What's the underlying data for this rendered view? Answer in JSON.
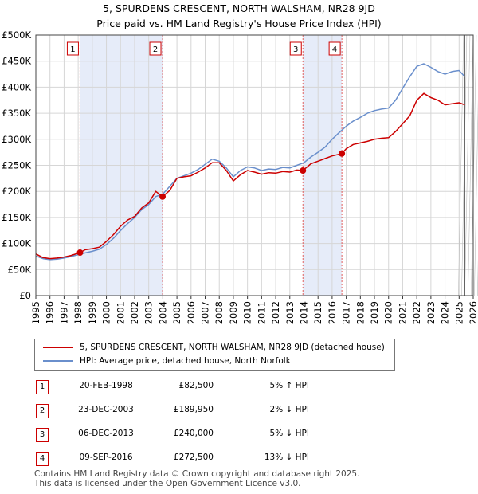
{
  "chart_data": {
    "type": "line",
    "title": "5, SPURDENS CRESCENT, NORTH WALSHAM, NR28 9JD",
    "subtitle": "Price paid vs. HM Land Registry's House Price Index (HPI)",
    "xlabel": "",
    "ylabel": "",
    "xlim": [
      1995,
      2026
    ],
    "ylim": [
      0,
      500000
    ],
    "x_ticks": [
      "1995",
      "1996",
      "1997",
      "1998",
      "1999",
      "2000",
      "2001",
      "2002",
      "2003",
      "2004",
      "2005",
      "2006",
      "2007",
      "2008",
      "2009",
      "2010",
      "2011",
      "2012",
      "2013",
      "2014",
      "2015",
      "2016",
      "2017",
      "2018",
      "2019",
      "2020",
      "2021",
      "2022",
      "2023",
      "2024",
      "2025",
      "2026"
    ],
    "y_ticks": [
      {
        "value": 0,
        "label": "£0"
      },
      {
        "value": 50000,
        "label": "£50K"
      },
      {
        "value": 100000,
        "label": "£100K"
      },
      {
        "value": 150000,
        "label": "£150K"
      },
      {
        "value": 200000,
        "label": "£200K"
      },
      {
        "value": 250000,
        "label": "£250K"
      },
      {
        "value": 300000,
        "label": "£300K"
      },
      {
        "value": 350000,
        "label": "£350K"
      },
      {
        "value": 400000,
        "label": "£400K"
      },
      {
        "value": 450000,
        "label": "£450K"
      },
      {
        "value": 500000,
        "label": "£500K"
      }
    ],
    "grid": true,
    "shaded_periods": [
      [
        1998.13,
        2003.98
      ],
      [
        2013.93,
        2016.69
      ]
    ],
    "series": [
      {
        "name": "5, SPURDENS CRESCENT, NORTH WALSHAM, NR28 9JD (detached house)",
        "color": "#cc0000",
        "x": [
          1995.0,
          1995.5,
          1996.0,
          1996.5,
          1997.0,
          1997.5,
          1998.13,
          1998.5,
          1999.0,
          1999.5,
          2000.0,
          2000.5,
          2001.0,
          2001.5,
          2002.0,
          2002.5,
          2003.0,
          2003.5,
          2003.98,
          2004.5,
          2005.0,
          2005.5,
          2006.0,
          2006.5,
          2007.0,
          2007.5,
          2008.0,
          2008.5,
          2009.0,
          2009.5,
          2010.0,
          2010.5,
          2011.0,
          2011.5,
          2012.0,
          2012.5,
          2013.0,
          2013.5,
          2013.93,
          2014.5,
          2015.0,
          2015.5,
          2016.0,
          2016.69,
          2017.0,
          2017.5,
          2018.0,
          2018.5,
          2019.0,
          2019.5,
          2020.0,
          2020.5,
          2021.0,
          2021.5,
          2022.0,
          2022.5,
          2023.0,
          2023.5,
          2024.0,
          2024.5,
          2025.0,
          2025.4
        ],
        "values": [
          80000,
          73000,
          71000,
          72000,
          74000,
          77000,
          82500,
          88000,
          90000,
          93000,
          104000,
          117000,
          133000,
          145000,
          152000,
          168000,
          178000,
          200000,
          189950,
          202000,
          225000,
          228000,
          230000,
          237000,
          245000,
          255000,
          255000,
          240000,
          220000,
          232000,
          240000,
          237000,
          233000,
          236000,
          235000,
          238000,
          237000,
          241000,
          240000,
          253000,
          258000,
          263000,
          268000,
          272500,
          282000,
          290000,
          293000,
          296000,
          300000,
          302000,
          303000,
          315000,
          330000,
          345000,
          375000,
          388000,
          380000,
          375000,
          366000,
          368000,
          370000,
          366000
        ]
      },
      {
        "name": "HPI: Average price, detached house, North Norfolk",
        "color": "#6a8fcc",
        "x": [
          1995.0,
          1995.5,
          1996.0,
          1996.5,
          1997.0,
          1997.5,
          1998.0,
          1998.5,
          1999.0,
          1999.5,
          2000.0,
          2000.5,
          2001.0,
          2001.5,
          2002.0,
          2002.5,
          2003.0,
          2003.5,
          2004.0,
          2004.5,
          2005.0,
          2005.5,
          2006.0,
          2006.5,
          2007.0,
          2007.5,
          2008.0,
          2008.5,
          2009.0,
          2009.5,
          2010.0,
          2010.5,
          2011.0,
          2011.5,
          2012.0,
          2012.5,
          2013.0,
          2013.5,
          2014.0,
          2014.5,
          2015.0,
          2015.5,
          2016.0,
          2016.5,
          2017.0,
          2017.5,
          2018.0,
          2018.5,
          2019.0,
          2019.5,
          2020.0,
          2020.5,
          2021.0,
          2021.5,
          2022.0,
          2022.5,
          2023.0,
          2023.5,
          2024.0,
          2024.5,
          2025.0,
          2025.4
        ],
        "values": [
          76000,
          71000,
          69000,
          70000,
          72000,
          75000,
          78500,
          82000,
          85000,
          89000,
          98000,
          110000,
          125000,
          138000,
          150000,
          165000,
          175000,
          190000,
          195000,
          210000,
          225000,
          230000,
          235000,
          242000,
          252000,
          262000,
          258000,
          245000,
          228000,
          240000,
          247000,
          245000,
          240000,
          243000,
          242000,
          246000,
          245000,
          250000,
          255000,
          266000,
          275000,
          285000,
          300000,
          313000,
          325000,
          335000,
          342000,
          350000,
          355000,
          358000,
          360000,
          375000,
          398000,
          420000,
          440000,
          445000,
          438000,
          430000,
          425000,
          430000,
          432000,
          420000
        ]
      }
    ],
    "sale_markers": [
      {
        "label": "1",
        "x": 1998.13,
        "y": 82500
      },
      {
        "label": "2",
        "x": 2003.98,
        "y": 189950
      },
      {
        "label": "3",
        "x": 2013.93,
        "y": 240000
      },
      {
        "label": "4",
        "x": 2016.69,
        "y": 272500
      }
    ]
  },
  "legend": [
    {
      "label": "5, SPURDENS CRESCENT, NORTH WALSHAM, NR28 9JD (detached house)",
      "color": "#cc0000"
    },
    {
      "label": "HPI: Average price, detached house, North Norfolk",
      "color": "#6a8fcc"
    }
  ],
  "sales": [
    {
      "num": "1",
      "date": "20-FEB-1998",
      "price": "£82,500",
      "hpi": "5% ↑ HPI"
    },
    {
      "num": "2",
      "date": "23-DEC-2003",
      "price": "£189,950",
      "hpi": "2% ↓ HPI"
    },
    {
      "num": "3",
      "date": "06-DEC-2013",
      "price": "£240,000",
      "hpi": "5% ↓ HPI"
    },
    {
      "num": "4",
      "date": "09-SEP-2016",
      "price": "£272,500",
      "hpi": "13% ↓ HPI"
    }
  ],
  "footer": {
    "line1": "Contains HM Land Registry data © Crown copyright and database right 2025.",
    "line2": "This data is licensed under the Open Government Licence v3.0."
  }
}
